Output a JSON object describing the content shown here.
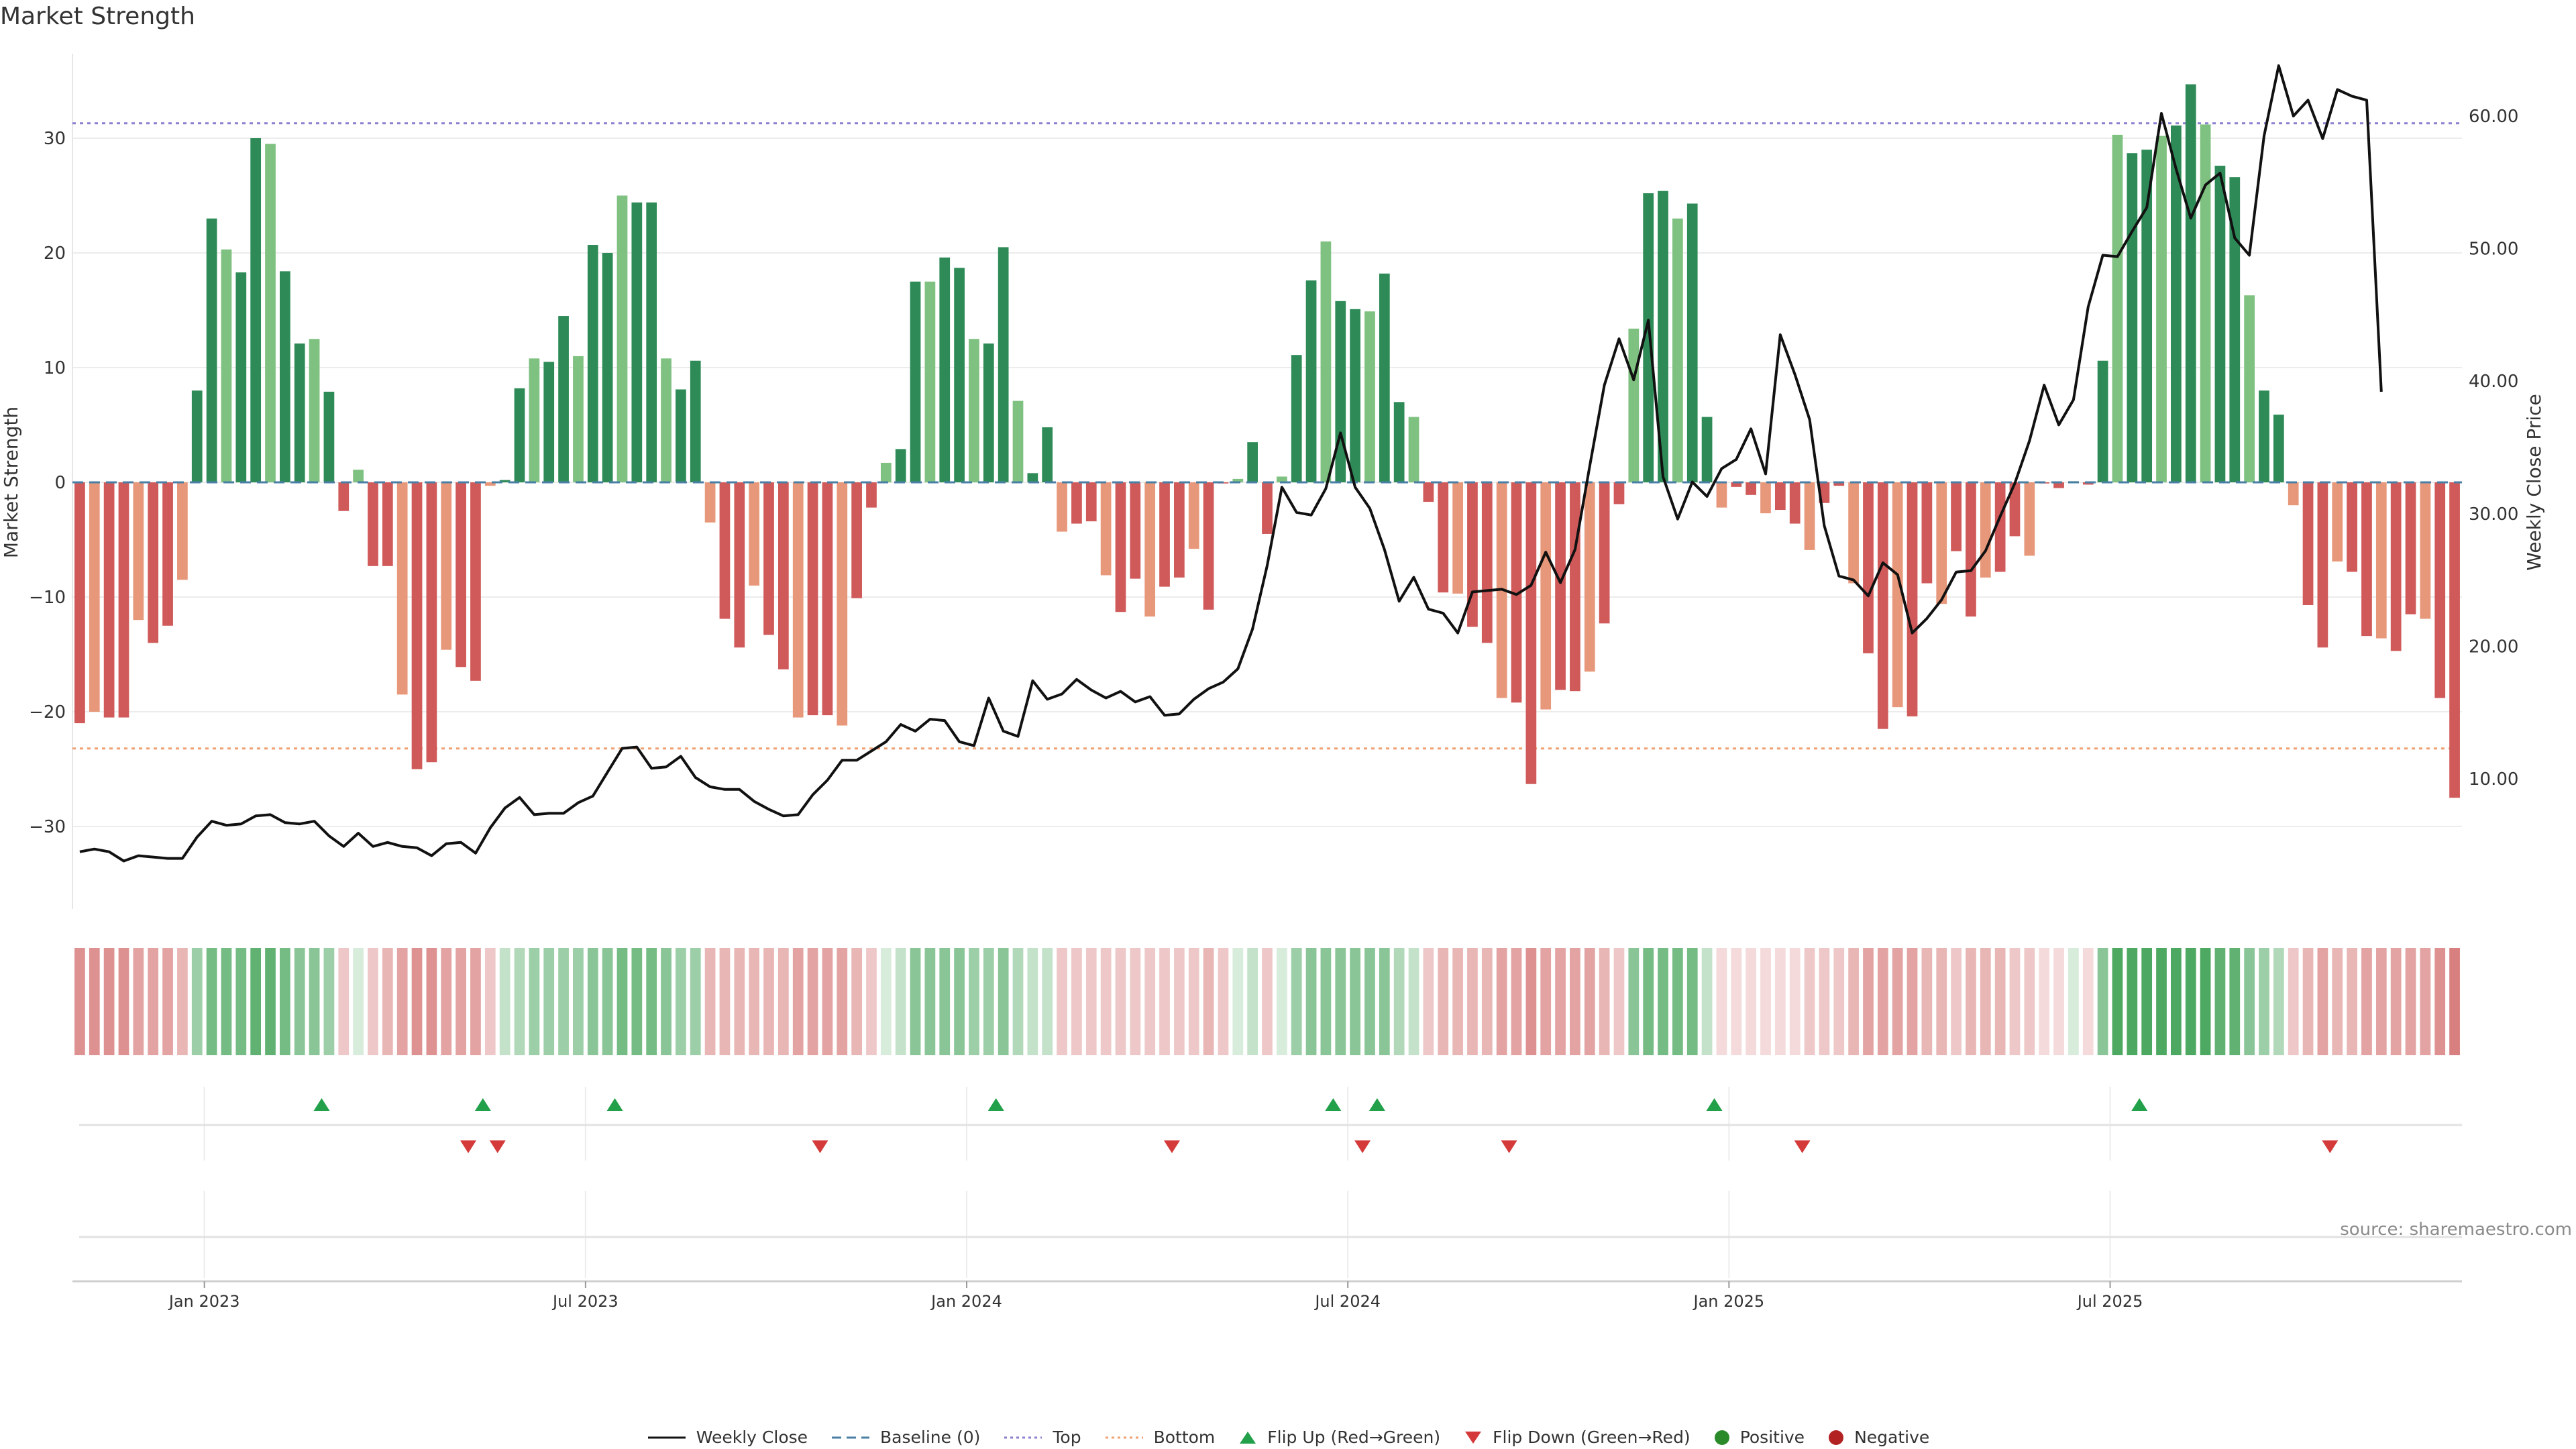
{
  "title": "Market Strength",
  "source": "source: sharemaestro.com",
  "colors": {
    "up_dark": "#2e8b57",
    "up_light": "#7fc180",
    "down_dark": "#d05a5a",
    "down_light": "#e8987a",
    "price_line": "#111111",
    "baseline": "#4a7fa5",
    "top_line": "#8a80d0",
    "bottom_line": "#f0a070",
    "flip_up": "#22a04a",
    "flip_down": "#d43a3a",
    "positive": "#2a8a2a",
    "negative": "#b22222"
  },
  "legend": [
    {
      "label": "Weekly Close",
      "kind": "line"
    },
    {
      "label": "Baseline (0)",
      "kind": "dash"
    },
    {
      "label": "Top",
      "kind": "dot-purple"
    },
    {
      "label": "Bottom",
      "kind": "dot-orange"
    },
    {
      "label": "Flip Up (Red→Green)",
      "kind": "tri-up"
    },
    {
      "label": "Flip Down (Green→Red)",
      "kind": "tri-down"
    },
    {
      "label": "Positive",
      "kind": "dot-green"
    },
    {
      "label": "Negative",
      "kind": "dot-red"
    }
  ],
  "chart_data": {
    "type": "bar",
    "title": "Market Strength",
    "ylabel": "Market Strength",
    "y2label": "Weekly Close Price",
    "ylim": [
      -37,
      35
    ],
    "y2lim": [
      0.5,
      65.0
    ],
    "yticks": [
      30,
      20,
      10,
      0,
      -10,
      -20,
      -30
    ],
    "y2ticks": [
      "60.00",
      "50.00",
      "40.00",
      "30.00",
      "20.00",
      "10.00"
    ],
    "xticks": [
      "Jan 2023",
      "Jul 2023",
      "Jan 2024",
      "Jul 2024",
      "Jan 2025",
      "Jul 2025"
    ],
    "top_level": 31.3,
    "bottom_level": -23.2,
    "start_week": -8.5,
    "strength": [
      -21,
      -20,
      -20.5,
      -20.5,
      -12,
      -14,
      -12.5,
      -8.5,
      8,
      23,
      20.3,
      18.3,
      30,
      29.5,
      18.4,
      12.1,
      12.5,
      7.9,
      -2.5,
      1.1,
      -7.3,
      -7.3,
      -18.5,
      -25,
      -24.4,
      -14.6,
      -16.1,
      -17.3,
      -0.3,
      0.2,
      8.2,
      10.8,
      10.5,
      14.5,
      11,
      20.7,
      20,
      25,
      24.4,
      24.4,
      10.8,
      8.1,
      10.6,
      -3.5,
      -11.9,
      -14.4,
      -9,
      -13.3,
      -16.3,
      -20.5,
      -20.3,
      -20.3,
      -21.2,
      -10.1,
      -2.2,
      1.7,
      2.9,
      17.5,
      17.5,
      19.6,
      18.7,
      12.5,
      12.1,
      20.5,
      7.1,
      0.8,
      4.8,
      -4.3,
      -3.6,
      -3.4,
      -8.1,
      -11.3,
      -8.4,
      -11.7,
      -9.1,
      -8.3,
      -5.8,
      -11.1,
      -0.1,
      0.3,
      3.5,
      -4.5,
      0.5,
      11.1,
      17.6,
      21,
      15.8,
      15.1,
      14.9,
      18.2,
      7,
      5.7,
      -1.7,
      -9.6,
      -9.7,
      -12.6,
      -14,
      -18.8,
      -19.2,
      -26.3,
      -19.8,
      -18.1,
      -18.2,
      -16.5,
      -12.3,
      -1.9,
      13.4,
      25.2,
      25.4,
      23,
      24.3,
      5.7,
      -2.2,
      -0.4,
      -1.1,
      -2.7,
      -2.4,
      -3.6,
      -5.9,
      -1.8,
      -0.3,
      -8.8,
      -14.9,
      -21.5,
      -19.6,
      -20.4,
      -8.8,
      -10.6,
      -6,
      -11.7,
      -8.3,
      -7.8,
      -4.7,
      -6.4,
      -0.1,
      -0.5,
      0.1,
      -0.2,
      10.6,
      30.3,
      28.7,
      29,
      30.2,
      31.1,
      34.7,
      31.2,
      27.6,
      26.6,
      16.3,
      8,
      5.9,
      -2,
      -10.7,
      -14.4,
      -6.9,
      -7.8,
      -13.4,
      -13.6,
      -14.7,
      -11.5,
      -11.9,
      -18.8,
      -27.5
    ],
    "price": [
      4.5,
      4.7,
      4.5,
      3.8,
      4.2,
      4.1,
      4.0,
      4.0,
      5.6,
      6.8,
      6.5,
      6.6,
      7.2,
      7.3,
      6.7,
      6.6,
      6.8,
      5.7,
      4.9,
      5.9,
      4.9,
      5.2,
      4.9,
      4.8,
      4.2,
      5.1,
      5.2,
      4.4,
      6.3,
      7.8,
      8.6,
      7.3,
      7.4,
      7.4,
      8.2,
      8.7,
      10.5,
      12.3,
      12.4,
      10.8,
      10.9,
      11.7,
      10.1,
      9.4,
      9.2,
      9.2,
      8.3,
      7.7,
      7.2,
      7.3,
      8.8,
      9.9,
      11.4,
      11.4,
      12.1,
      12.8,
      14.1,
      13.6,
      14.5,
      14.4,
      12.8,
      12.5,
      16.1,
      13.6,
      13.2,
      17.4,
      16.0,
      16.4,
      17.5,
      16.7,
      16.1,
      16.6,
      15.8,
      16.2,
      14.8,
      14.9,
      16.0,
      16.8,
      17.3,
      18.3,
      21.3,
      26.1,
      32.0,
      30.1,
      29.9,
      31.9,
      36.1,
      32.0,
      30.4,
      27.3,
      23.4,
      25.2,
      22.8,
      22.5,
      21.0,
      24.1,
      24.2,
      24.3,
      23.9,
      24.6,
      27.1,
      24.8,
      27.3,
      33.6,
      39.7,
      43.2,
      40.1,
      44.6,
      32.8,
      29.6,
      32.4,
      31.3,
      33.4,
      34.1,
      36.4,
      33.0,
      43.5,
      40.5,
      37.1,
      29.1,
      25.3,
      25.0,
      23.8,
      26.3,
      25.4,
      21.0,
      22.1,
      23.5,
      25.6,
      25.7,
      27.2,
      29.8,
      32.3,
      35.5,
      39.7,
      36.7,
      38.6,
      45.6,
      49.5,
      49.4,
      51.3,
      53.1,
      60.2,
      56.0,
      52.3,
      54.8,
      55.7,
      50.8,
      49.5,
      58.5,
      63.8,
      60.0,
      61.2,
      58.3,
      62.0,
      61.5,
      61.2,
      39.2
    ],
    "heat_intensity": [
      0.6,
      0.6,
      0.6,
      0.6,
      0.5,
      0.5,
      0.5,
      0.4,
      0.5,
      0.7,
      0.7,
      0.7,
      0.8,
      0.8,
      0.7,
      0.6,
      0.6,
      0.5,
      0.3,
      0.2,
      0.3,
      0.4,
      0.5,
      0.6,
      0.6,
      0.5,
      0.5,
      0.5,
      0.3,
      0.3,
      0.4,
      0.5,
      0.5,
      0.5,
      0.5,
      0.6,
      0.6,
      0.7,
      0.7,
      0.7,
      0.6,
      0.5,
      0.5,
      0.4,
      0.4,
      0.4,
      0.4,
      0.4,
      0.4,
      0.5,
      0.5,
      0.5,
      0.5,
      0.4,
      0.3,
      0.2,
      0.3,
      0.6,
      0.6,
      0.6,
      0.6,
      0.5,
      0.5,
      0.6,
      0.4,
      0.3,
      0.3,
      0.3,
      0.3,
      0.3,
      0.3,
      0.3,
      0.3,
      0.3,
      0.3,
      0.3,
      0.3,
      0.4,
      0.3,
      0.2,
      0.3,
      0.3,
      0.2,
      0.5,
      0.6,
      0.6,
      0.6,
      0.6,
      0.6,
      0.6,
      0.4,
      0.3,
      0.3,
      0.4,
      0.4,
      0.4,
      0.4,
      0.5,
      0.5,
      0.6,
      0.5,
      0.5,
      0.5,
      0.5,
      0.4,
      0.3,
      0.6,
      0.7,
      0.7,
      0.7,
      0.7,
      0.3,
      0.2,
      0.2,
      0.2,
      0.2,
      0.2,
      0.2,
      0.3,
      0.3,
      0.3,
      0.4,
      0.5,
      0.5,
      0.5,
      0.5,
      0.4,
      0.4,
      0.3,
      0.4,
      0.4,
      0.4,
      0.3,
      0.3,
      0.2,
      0.2,
      0.2,
      0.2,
      0.6,
      0.9,
      0.9,
      0.9,
      0.9,
      0.9,
      0.9,
      0.9,
      0.8,
      0.8,
      0.6,
      0.5,
      0.4,
      0.3,
      0.4,
      0.5,
      0.4,
      0.4,
      0.5,
      0.5,
      0.5,
      0.5,
      0.5,
      0.6,
      0.7
    ],
    "flip_up_weeks": [
      8,
      19,
      28,
      54,
      77,
      80,
      103,
      132
    ],
    "flip_down_weeks": [
      18,
      20,
      42,
      66,
      79,
      89,
      109,
      145
    ]
  }
}
